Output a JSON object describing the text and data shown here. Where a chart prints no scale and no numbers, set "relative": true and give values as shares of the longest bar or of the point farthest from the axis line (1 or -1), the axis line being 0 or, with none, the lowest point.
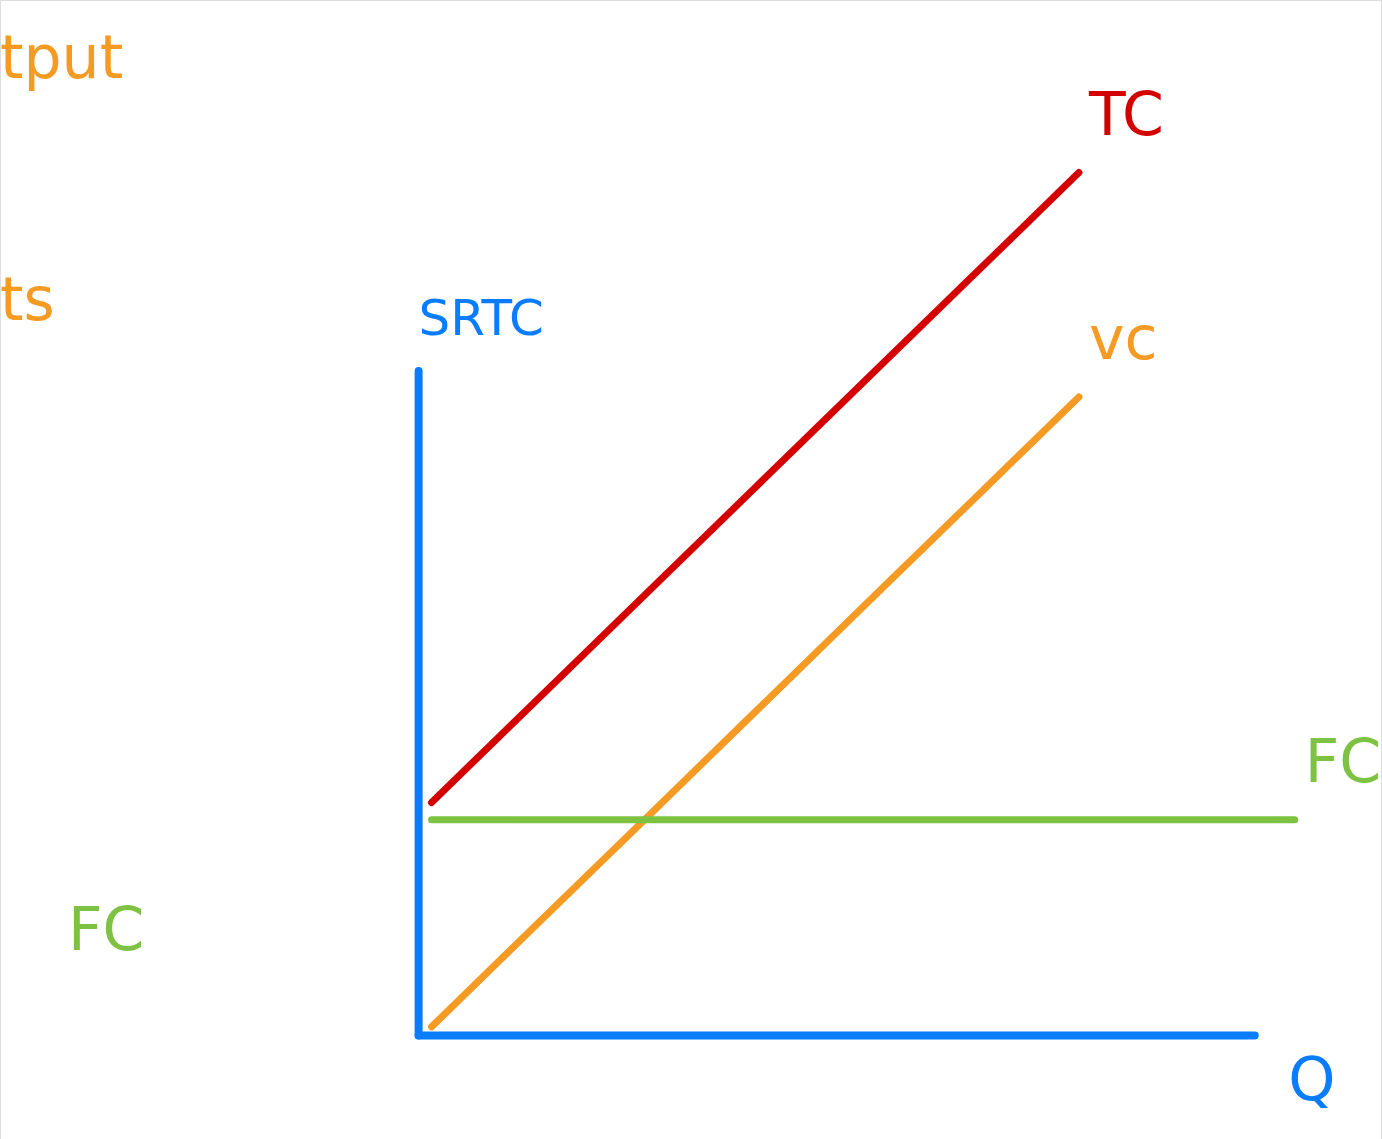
{
  "chart_data": {
    "type": "line",
    "relative": true,
    "xlabel": "Q",
    "ylabel": "SRTC",
    "categories": [
      null,
      null,
      null,
      null,
      null,
      null,
      null,
      null,
      null
    ],
    "series": [
      {
        "name": "TC",
        "color": "#d40000",
        "values": [
          0.27,
          0.3917,
          0.5133,
          0.635,
          0.7567,
          0.8783,
          1.0,
          null,
          null
        ]
      },
      {
        "name": "vc",
        "color": "#f59a23",
        "values": [
          0.01,
          0.1317,
          0.2533,
          0.375,
          0.4967,
          0.6183,
          0.74,
          null,
          null
        ]
      },
      {
        "name": "FC",
        "color": "#7dc242",
        "values": [
          0.25,
          0.25,
          0.25,
          0.25,
          0.25,
          0.25,
          0.25,
          0.25,
          0.25
        ]
      }
    ],
    "annotations": [
      "tput",
      "ts",
      "FC"
    ],
    "grid": false,
    "legend": false,
    "marker": "none",
    "line_style": "solid"
  }
}
